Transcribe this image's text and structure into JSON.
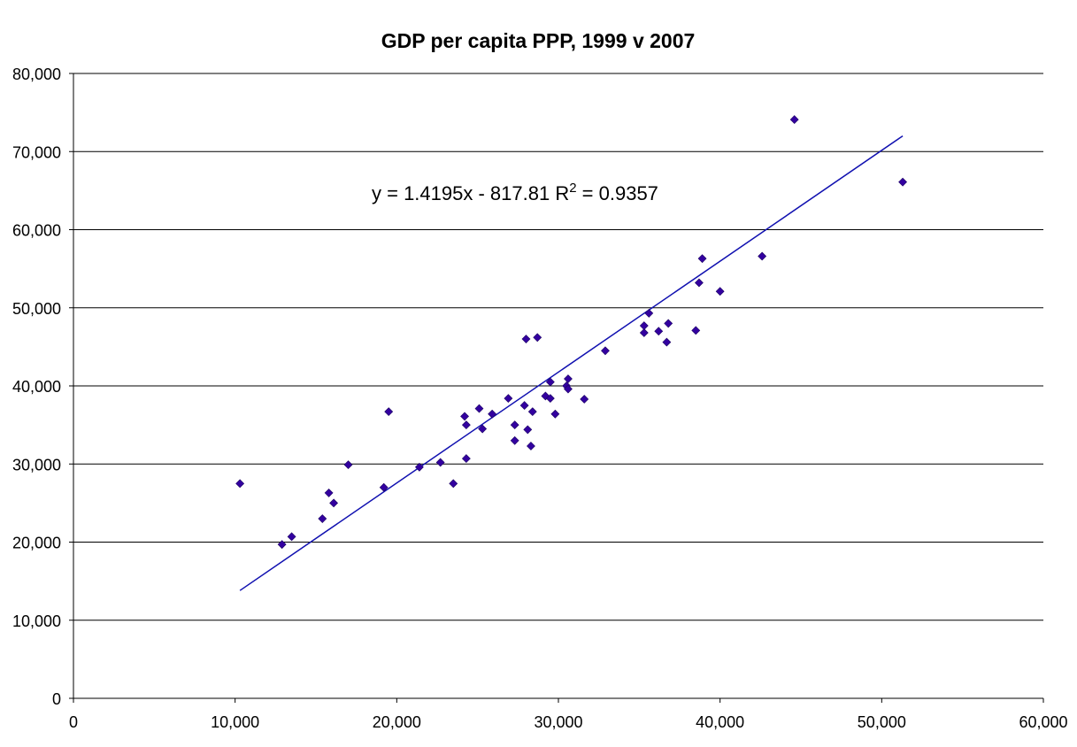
{
  "chart_data": {
    "type": "scatter",
    "title": "GDP per capita PPP, 1999 v 2007",
    "xlabel": "",
    "ylabel": "",
    "xlim": [
      0,
      60000
    ],
    "ylim": [
      0,
      80000
    ],
    "x_ticks": [
      0,
      10000,
      20000,
      30000,
      40000,
      50000,
      60000
    ],
    "y_ticks": [
      0,
      10000,
      20000,
      30000,
      40000,
      50000,
      60000,
      70000,
      80000
    ],
    "x_tick_labels": [
      "0",
      "10,000",
      "20,000",
      "30,000",
      "40,000",
      "50,000",
      "60,000"
    ],
    "y_tick_labels": [
      "0",
      "10,000",
      "20,000",
      "30,000",
      "40,000",
      "50,000",
      "60,000",
      "70,000",
      "80,000"
    ],
    "grid": "horizontal",
    "legend": "none",
    "series": [
      {
        "points": [
          [
            10300,
            27500
          ],
          [
            12900,
            19700
          ],
          [
            13500,
            20700
          ],
          [
            15400,
            23000
          ],
          [
            15800,
            26300
          ],
          [
            16100,
            25000
          ],
          [
            17000,
            29900
          ],
          [
            19200,
            27000
          ],
          [
            19500,
            36700
          ],
          [
            21400,
            29600
          ],
          [
            22700,
            30200
          ],
          [
            23500,
            27500
          ],
          [
            24200,
            36100
          ],
          [
            24300,
            35000
          ],
          [
            24300,
            30700
          ],
          [
            25100,
            37100
          ],
          [
            25300,
            34500
          ],
          [
            25900,
            36400
          ],
          [
            26900,
            38400
          ],
          [
            27300,
            35000
          ],
          [
            27300,
            33000
          ],
          [
            27900,
            37500
          ],
          [
            28000,
            46000
          ],
          [
            28100,
            34400
          ],
          [
            28300,
            32300
          ],
          [
            28400,
            36700
          ],
          [
            28700,
            46200
          ],
          [
            29200,
            38700
          ],
          [
            29500,
            40500
          ],
          [
            29500,
            38400
          ],
          [
            29800,
            36400
          ],
          [
            30500,
            40000
          ],
          [
            30600,
            39600
          ],
          [
            30600,
            40900
          ],
          [
            31600,
            38300
          ],
          [
            32900,
            44500
          ],
          [
            35300,
            46800
          ],
          [
            35300,
            47700
          ],
          [
            35600,
            49300
          ],
          [
            36200,
            47000
          ],
          [
            36700,
            45600
          ],
          [
            36800,
            48000
          ],
          [
            38500,
            47100
          ],
          [
            38700,
            53200
          ],
          [
            38900,
            56300
          ],
          [
            40000,
            52100
          ],
          [
            42600,
            56600
          ],
          [
            44600,
            74100
          ],
          [
            51300,
            66100
          ]
        ],
        "color": "#3300A0",
        "marker": "diamond"
      }
    ],
    "trendline": {
      "type": "linear",
      "slope": 1.4195,
      "intercept": -817.81,
      "x_range": [
        10300,
        51300
      ],
      "color": "#1010B0",
      "label": "y = 1.4195x - 817.81   R",
      "label_sup": "2",
      "label_tail": " = 0.9357"
    }
  }
}
